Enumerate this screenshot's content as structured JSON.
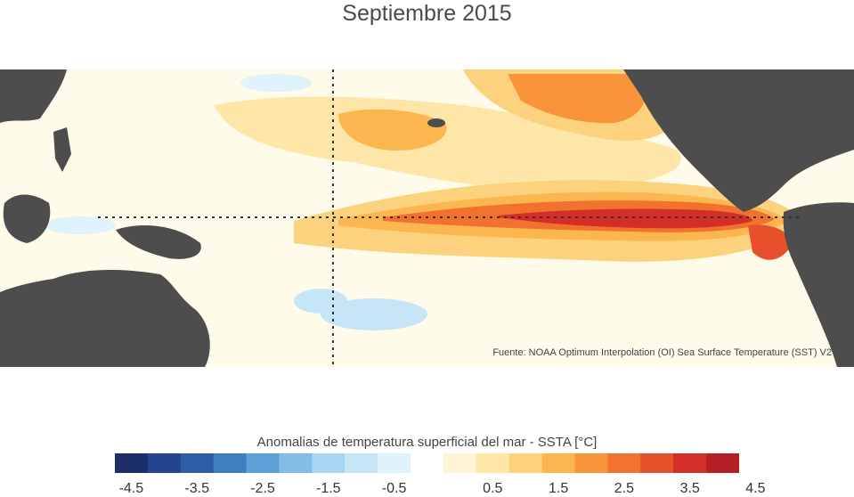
{
  "title": "Septiembre 2015",
  "map": {
    "source_note": "Fuente: NOAA Optimum Interpolation (OI) Sea Surface Temperature (SST) V2",
    "land_color": "#4d4d4d",
    "reference_lines": "dotted"
  },
  "legend": {
    "title": "Anomalias de temperatura superficial del mar - SSTA  [°C]",
    "colors": [
      "#1c2f6b",
      "#23458f",
      "#2c5ea8",
      "#3f7fc0",
      "#5ea0d8",
      "#82bde8",
      "#a6d6f3",
      "#c6e6f8",
      "#e0f2fb",
      "#ffffff",
      "#fff5d6",
      "#fee6a8",
      "#fdd27e",
      "#fbb64f",
      "#f8953a",
      "#f1722e",
      "#e6502a",
      "#d32e27",
      "#b51d24"
    ],
    "tick_labels": [
      "-4.5",
      "-3.5",
      "-2.5",
      "-1.5",
      "-0.5",
      "0.5",
      "1.5",
      "2.5",
      "3.5",
      "4.5"
    ]
  }
}
